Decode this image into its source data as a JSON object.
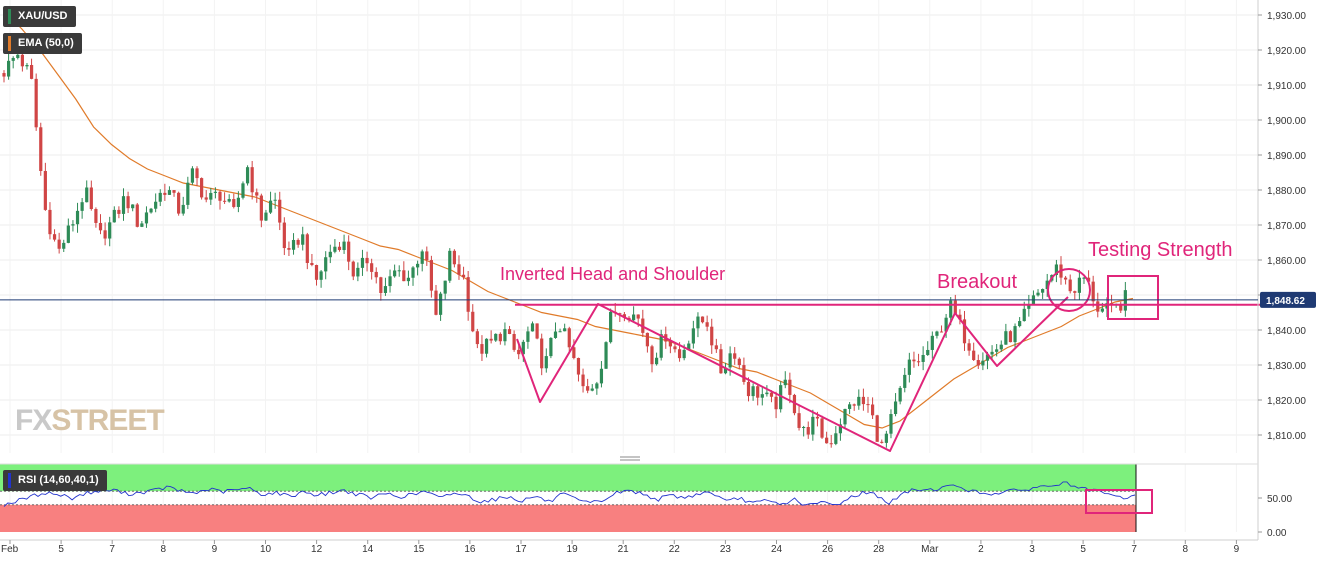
{
  "instrument": "XAU/USD",
  "indicators": {
    "ema": "EMA (50,0)",
    "rsi": "RSI (14,60,40,1)"
  },
  "watermark": {
    "part1": "FX",
    "part2": "STREET"
  },
  "colors": {
    "up_candle": "#2e8b57",
    "down_candle": "#d04545",
    "ema_line": "#e07b2a",
    "annotation": "#e0257a",
    "price_line": "#1f3a73",
    "rsi_line": "#2233cc",
    "rsi_upper_zone": "#7df07d",
    "rsi_lower_zone": "#f88080"
  },
  "chart_data": [
    {
      "type": "candlestick",
      "title": "XAU/USD",
      "y_ticks": [
        "1,810.00",
        "1,820.00",
        "1,830.00",
        "1,840.00",
        "1,850.00",
        "1,860.00",
        "1,870.00",
        "1,880.00",
        "1,890.00",
        "1,900.00",
        "1,910.00",
        "1,920.00",
        "1,930.00"
      ],
      "ylim": [
        1803,
        1933
      ],
      "x_ticks": [
        "Feb",
        "5",
        "7",
        "8",
        "9",
        "10",
        "12",
        "14",
        "15",
        "16",
        "17",
        "19",
        "21",
        "22",
        "23",
        "24",
        "26",
        "28",
        "Mar",
        "2",
        "3",
        "5",
        "7",
        "8",
        "9"
      ],
      "last_price": 1848.62,
      "last_price_label": "1,848.62",
      "price_path": [
        1914,
        1919,
        1912,
        1875,
        1862,
        1870,
        1880,
        1866,
        1871,
        1878,
        1870,
        1876,
        1881,
        1874,
        1885,
        1877,
        1879,
        1873,
        1887,
        1872,
        1878,
        1860,
        1868,
        1853,
        1862,
        1866,
        1855,
        1861,
        1850,
        1857,
        1855,
        1864,
        1843,
        1861,
        1855,
        1834,
        1836,
        1840,
        1832,
        1841,
        1829,
        1843,
        1833,
        1821,
        1827,
        1845,
        1846,
        1843,
        1832,
        1839,
        1832,
        1841,
        1843,
        1828,
        1835,
        1823,
        1822,
        1818,
        1826,
        1810,
        1814,
        1807,
        1815,
        1820,
        1818,
        1806,
        1818,
        1830,
        1832,
        1838,
        1847,
        1839,
        1832,
        1833,
        1837,
        1840,
        1847,
        1853,
        1858,
        1851,
        1855,
        1846,
        1845,
        1849
      ],
      "ema_series": {
        "name": "EMA (50,0)",
        "values": [
          1931,
          1926,
          1920,
          1913,
          1906,
          1898,
          1893,
          1889,
          1886,
          1884,
          1882,
          1881,
          1880,
          1879,
          1878,
          1876,
          1874,
          1872,
          1870,
          1868,
          1866,
          1864,
          1863,
          1861,
          1859,
          1857,
          1854,
          1851,
          1849,
          1847,
          1845,
          1844,
          1843,
          1841,
          1840,
          1839,
          1838,
          1837,
          1835,
          1833,
          1831,
          1829,
          1828,
          1826,
          1824,
          1822,
          1819,
          1816,
          1813,
          1812,
          1814,
          1818,
          1822,
          1826,
          1829,
          1832,
          1835,
          1837,
          1839,
          1841,
          1844,
          1846,
          1848,
          1849
        ]
      },
      "annotations": [
        {
          "text": "Inverted Head and Shoulder"
        },
        {
          "text": "Breakout"
        },
        {
          "text": "Testing Strength"
        }
      ],
      "neckline": 1847.2
    },
    {
      "type": "line",
      "title": "RSI (14,60,40,1)",
      "y_ticks": [
        "0.00",
        "50.00"
      ],
      "ylim": [
        0,
        100
      ],
      "upper_level": 60,
      "lower_level": 40,
      "values": [
        40,
        46,
        52,
        58,
        55,
        50,
        57,
        60,
        62,
        56,
        58,
        61,
        66,
        60,
        57,
        63,
        59,
        62,
        64,
        55,
        58,
        52,
        60,
        54,
        58,
        61,
        55,
        50,
        57,
        52,
        55,
        60,
        49,
        58,
        53,
        45,
        48,
        52,
        46,
        53,
        44,
        56,
        47,
        42,
        47,
        58,
        61,
        55,
        48,
        54,
        50,
        57,
        58,
        44,
        50,
        42,
        46,
        40,
        48,
        38,
        44,
        39,
        50,
        58,
        55,
        42,
        57,
        63,
        62,
        66,
        68,
        60,
        56,
        58,
        60,
        63,
        66,
        69,
        72,
        63,
        61,
        55,
        50,
        53
      ]
    }
  ]
}
